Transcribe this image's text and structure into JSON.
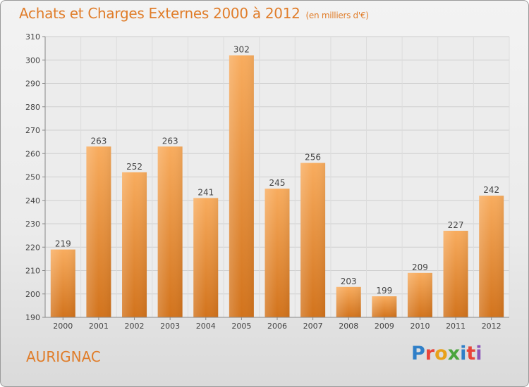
{
  "title": "Achats et Charges Externes 2000 à 2012",
  "unit": "(en milliers d'€)",
  "commune": "AURIGNAC",
  "logo": {
    "letters": [
      "P",
      "r",
      "o",
      "x",
      "i",
      "t",
      "i"
    ]
  },
  "colors": {
    "accent": "#e07d2a",
    "bar_light": "#f6a85a",
    "bar_dark": "#d2731c"
  },
  "chart_data": {
    "type": "bar",
    "title": "Achats et Charges Externes 2000 à 2012",
    "subtitle": "(en milliers d'€)",
    "xlabel": "",
    "ylabel": "",
    "categories": [
      "2000",
      "2001",
      "2002",
      "2003",
      "2004",
      "2005",
      "2006",
      "2007",
      "2008",
      "2009",
      "2010",
      "2011",
      "2012"
    ],
    "values": [
      219,
      263,
      252,
      263,
      241,
      302,
      245,
      256,
      203,
      199,
      209,
      227,
      242
    ],
    "ylim": [
      190,
      310
    ],
    "yticks": [
      190,
      200,
      210,
      220,
      230,
      240,
      250,
      260,
      270,
      280,
      290,
      300,
      310
    ],
    "grid": true,
    "legend": "none"
  }
}
